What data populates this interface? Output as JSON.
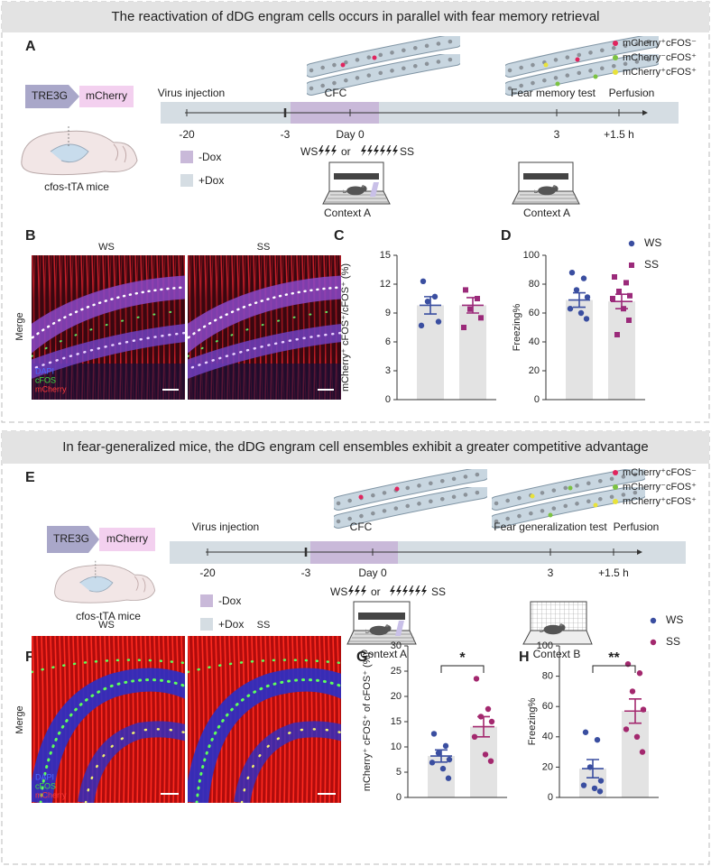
{
  "section1": {
    "title": "The reactivation of dDG engram cells occurs in parallel with fear memory retrieval",
    "labels": [
      "A",
      "B",
      "C",
      "D"
    ],
    "construct": [
      "TRE3G",
      "mCherry"
    ],
    "mouse": "cfos-tTA mice",
    "events": [
      "Virus injection",
      "CFC",
      "Fear memory test",
      "Perfusion"
    ],
    "timeline_ticks": [
      "-20",
      "-3",
      "Day 0",
      "3",
      "+1.5 h"
    ],
    "dox": [
      "-Dox",
      "+Dox"
    ],
    "stim": [
      "WS",
      "or",
      "SS"
    ],
    "contexts": [
      "Context A",
      "Context A"
    ],
    "legend": [
      "mCherry⁺cFOS⁻",
      "mCherry⁻cFOS⁺",
      "mCherry⁺cFOS⁺"
    ],
    "image_titles": [
      "WS",
      "SS"
    ],
    "row_label": "Merge",
    "channels": [
      "DAPI",
      "cFOS",
      "mCherry"
    ]
  },
  "section2": {
    "title": "In fear-generalized mice, the dDG engram cell ensembles exhibit a greater competitive advantage",
    "labels": [
      "E",
      "F",
      "G",
      "H"
    ],
    "construct": [
      "TRE3G",
      "mCherry"
    ],
    "mouse": "cfos-tTA mice",
    "events": [
      "Virus injection",
      "CFC",
      "Fear generalization test",
      "Perfusion"
    ],
    "timeline_ticks": [
      "-20",
      "-3",
      "Day 0",
      "3",
      "+1.5 h"
    ],
    "dox": [
      "-Dox",
      "+Dox"
    ],
    "stim": [
      "WS",
      "or",
      "SS"
    ],
    "contexts": [
      "Context A",
      "Context B"
    ],
    "legend": [
      "mCherry⁺cFOS⁻",
      "mCherry⁻cFOS⁺",
      "mCherry⁺cFOS⁺"
    ],
    "image_titles": [
      "WS",
      "SS"
    ],
    "row_label": "Merge",
    "channels": [
      "DAPI",
      "cFOS",
      "mCherry"
    ]
  },
  "chart_data": [
    {
      "type": "bar",
      "ylabel": "mCherry⁺ cFOS⁺/cFOS⁺ (%)",
      "ylim": [
        0,
        15
      ],
      "yticks": [
        0,
        3,
        6,
        9,
        12,
        15
      ],
      "bar_color": "#e3e3e3",
      "groups": [
        {
          "value": 9.8,
          "error": 0.9,
          "points": [
            12.3,
            10.7,
            10.2,
            8.1,
            7.7
          ],
          "color": "#3a4ea0",
          "marker": "circle"
        },
        {
          "value": 9.8,
          "error": 0.8,
          "points": [
            11.4,
            10.5,
            9.4,
            8.5,
            7.5
          ],
          "color": "#9b2a7a",
          "marker": "square"
        }
      ]
    },
    {
      "type": "bar",
      "ylabel": "Freezing%",
      "ylim": [
        0,
        100
      ],
      "yticks": [
        0,
        20,
        40,
        60,
        80,
        100
      ],
      "bar_color": "#e3e3e3",
      "groups": [
        {
          "name": "WS",
          "value": 69,
          "error": 5,
          "points": [
            88,
            84,
            76,
            71,
            63,
            60,
            56
          ],
          "color": "#3a4ea0",
          "marker": "circle"
        },
        {
          "name": "SS",
          "value": 68,
          "error": 5,
          "points": [
            85,
            81,
            75,
            72,
            70,
            63,
            55,
            45
          ],
          "color": "#9b2a7a",
          "marker": "square"
        }
      ]
    },
    {
      "type": "bar",
      "ylabel": "mCherry⁺ cFOS⁺ of cFOS⁺ (%)",
      "ylim": [
        0,
        30
      ],
      "yticks": [
        0,
        5,
        10,
        15,
        20,
        25,
        30
      ],
      "bar_color": "#e3e3e3",
      "significance": "*",
      "groups": [
        {
          "value": 8.2,
          "error": 1.2,
          "points": [
            12.6,
            10.2,
            8.8,
            7.5,
            6.9,
            5.7,
            3.8
          ],
          "color": "#3a4ea0",
          "marker": "circle"
        },
        {
          "value": 14,
          "error": 2,
          "points": [
            23.5,
            17.5,
            16,
            15,
            12,
            8.5,
            7.2
          ],
          "color": "#a3286e",
          "marker": "circle"
        }
      ]
    },
    {
      "type": "bar",
      "ylabel": "Freezing%",
      "ylim": [
        0,
        100
      ],
      "yticks": [
        0,
        20,
        40,
        60,
        80,
        100
      ],
      "bar_color": "#e3e3e3",
      "significance": "**",
      "groups": [
        {
          "name": "WS",
          "value": 19,
          "error": 6,
          "points": [
            43,
            38,
            20,
            11,
            8,
            6,
            4
          ],
          "color": "#3a4ea0",
          "marker": "circle"
        },
        {
          "name": "SS",
          "value": 57,
          "error": 8,
          "points": [
            88,
            82,
            70,
            58,
            45,
            40,
            30
          ],
          "color": "#a3286e",
          "marker": "circle"
        }
      ]
    }
  ]
}
